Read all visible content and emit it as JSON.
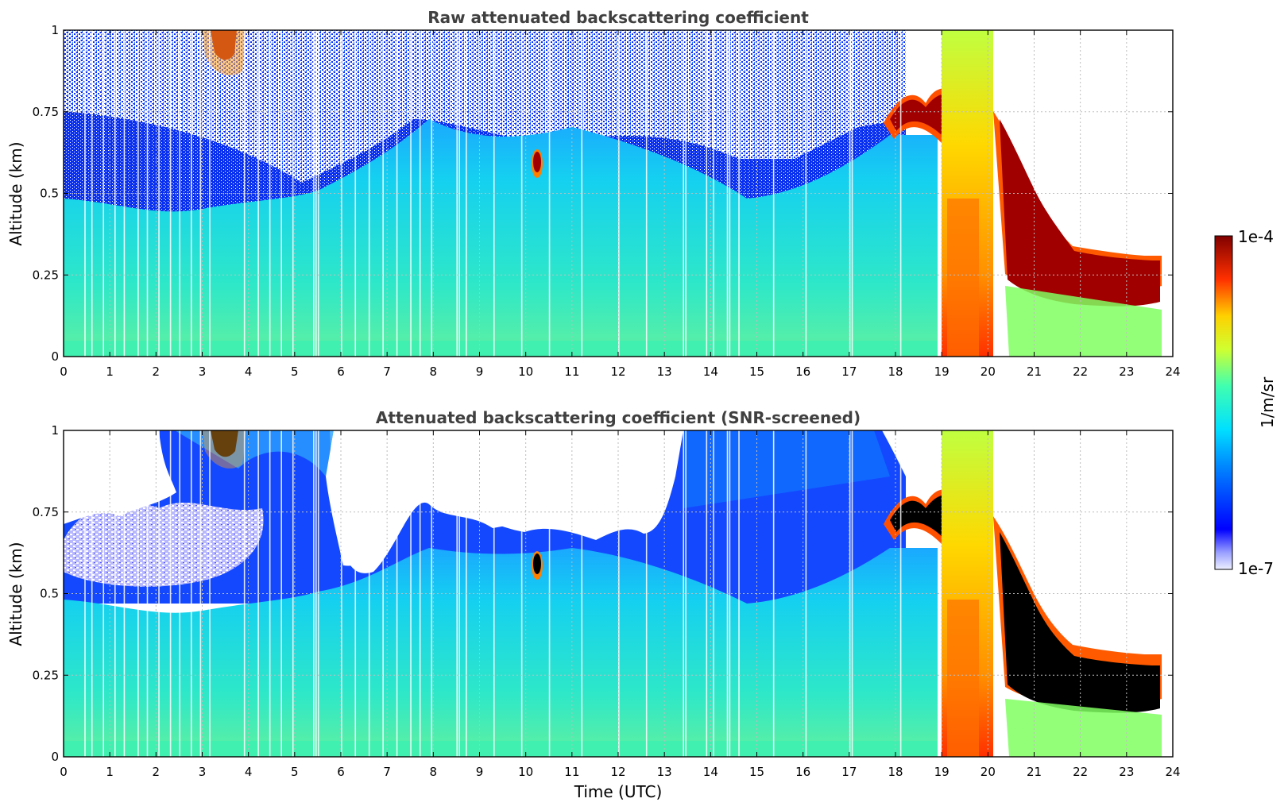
{
  "chart_data": [
    {
      "type": "heatmap",
      "title": "Raw attenuated backscattering coefficient",
      "xlabel": "",
      "ylabel": "Altitude (km)",
      "xlim": [
        0,
        24
      ],
      "ylim": [
        0,
        1
      ],
      "x_ticks": [
        "0",
        "1",
        "2",
        "3",
        "4",
        "5",
        "6",
        "7",
        "8",
        "9",
        "10",
        "11",
        "12",
        "13",
        "14",
        "15",
        "16",
        "17",
        "18",
        "19",
        "20",
        "21",
        "22",
        "23",
        "24"
      ],
      "y_ticks": [
        "0",
        "0.25",
        "0.5",
        "0.75",
        "1"
      ],
      "grid": true,
      "colorscale": "jet",
      "features": [
        {
          "label": "noisy-clear-sky",
          "x_range": [
            0,
            18
          ],
          "y_range": [
            0.5,
            1.0
          ]
        },
        {
          "label": "boundary-layer",
          "x_range": [
            0,
            19
          ],
          "y_range": [
            0,
            0.5
          ]
        },
        {
          "label": "cloud-layer-morning",
          "x_range": [
            3.2,
            3.8
          ],
          "y_range": [
            0.9,
            1.0
          ]
        },
        {
          "label": "cloud-patch",
          "x_range": [
            10.1,
            10.4
          ],
          "y_range": [
            0.55,
            0.62
          ]
        },
        {
          "label": "cloud-layer-evening",
          "x_range": [
            17.8,
            19.0
          ],
          "y_range": [
            0.65,
            0.8
          ]
        },
        {
          "label": "rain-column",
          "x_range": [
            19.0,
            20.2
          ],
          "y_range": [
            0,
            1.0
          ]
        },
        {
          "label": "cloud-base-descending",
          "x_range": [
            20.2,
            23.8
          ],
          "y_range": [
            0.15,
            0.7
          ]
        }
      ]
    },
    {
      "type": "heatmap",
      "title": "Attenuated backscattering coefficient (SNR-screened)",
      "xlabel": "Time (UTC)",
      "ylabel": "Altitude (km)",
      "xlim": [
        0,
        24
      ],
      "ylim": [
        0,
        1
      ],
      "x_ticks": [
        "0",
        "1",
        "2",
        "3",
        "4",
        "5",
        "6",
        "7",
        "8",
        "9",
        "10",
        "11",
        "12",
        "13",
        "14",
        "15",
        "16",
        "17",
        "18",
        "19",
        "20",
        "21",
        "22",
        "23",
        "24"
      ],
      "y_ticks": [
        "0",
        "0.25",
        "0.5",
        "0.75",
        "1"
      ],
      "grid": true,
      "colorscale": "jet",
      "features": [
        {
          "label": "screened-out-region",
          "x_range": [
            5.7,
            13.2
          ],
          "y_range": [
            0.6,
            1.0
          ]
        },
        {
          "label": "boundary-layer",
          "x_range": [
            0,
            19
          ],
          "y_range": [
            0,
            0.5
          ]
        },
        {
          "label": "saturated-cloud-morning",
          "x_range": [
            3.2,
            3.7
          ],
          "y_range": [
            0.9,
            1.0
          ]
        },
        {
          "label": "saturated-cloud-patch",
          "x_range": [
            10.1,
            10.4
          ],
          "y_range": [
            0.55,
            0.62
          ]
        },
        {
          "label": "saturated-cloud-evening",
          "x_range": [
            17.8,
            19.0
          ],
          "y_range": [
            0.65,
            0.8
          ]
        },
        {
          "label": "rain-column",
          "x_range": [
            19.0,
            20.2
          ],
          "y_range": [
            0,
            1.0
          ]
        },
        {
          "label": "saturated-cloud-base",
          "x_range": [
            20.2,
            23.8
          ],
          "y_range": [
            0.15,
            0.6
          ]
        }
      ]
    }
  ],
  "colorbar": {
    "label": "1/m/sr",
    "max_label": "1e-4",
    "min_label": "1e-7",
    "scale": "log",
    "range": [
      1e-07,
      0.0001
    ]
  },
  "colors": {
    "title": "#404040",
    "grid": "#bdbdbd",
    "saturated": "#000000"
  }
}
